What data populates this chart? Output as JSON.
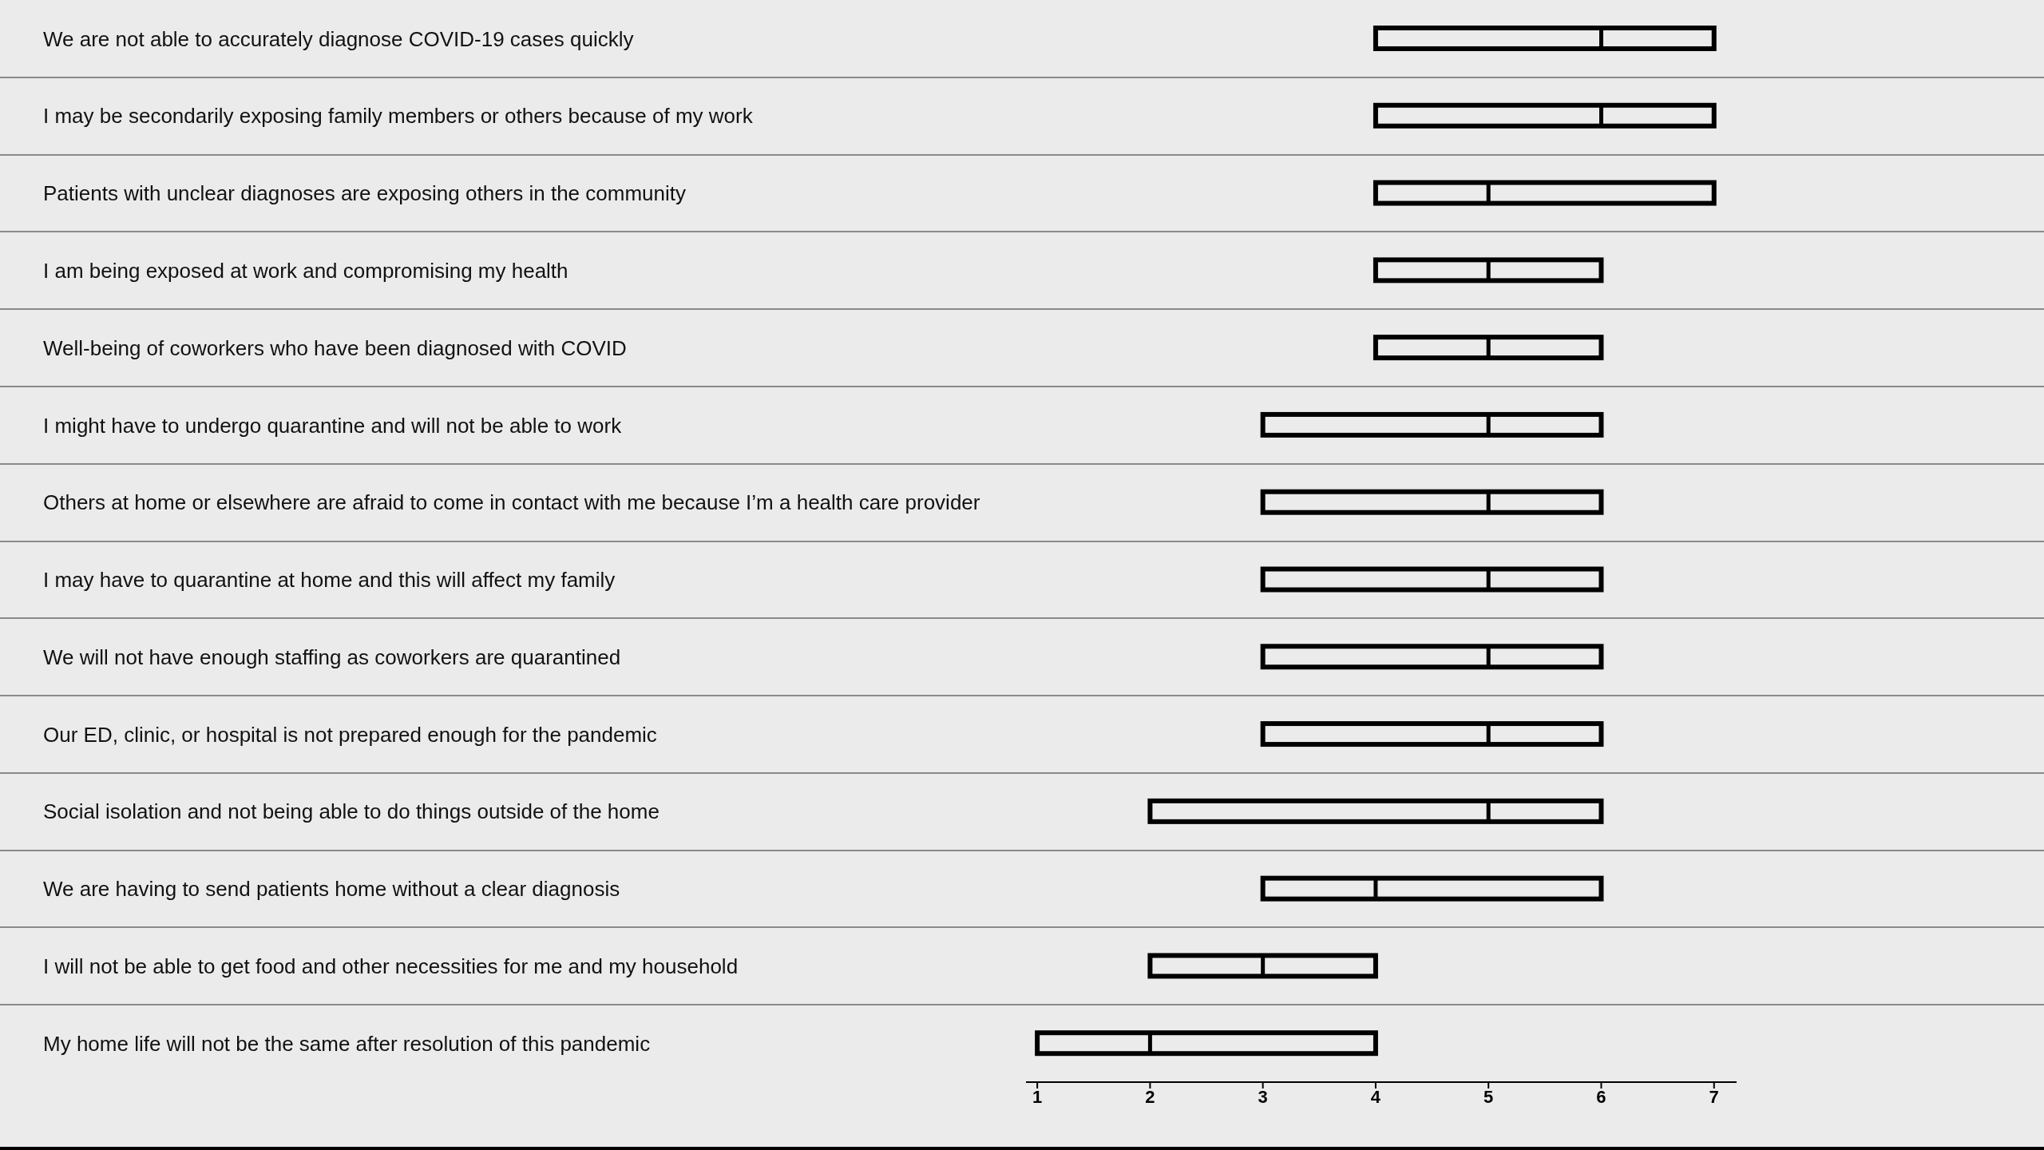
{
  "chart_data": {
    "type": "box",
    "orientation": "horizontal",
    "color": "#000000",
    "xlim": [
      0.9,
      7.2
    ],
    "xticks": [
      1,
      2,
      3,
      4,
      5,
      6,
      7
    ],
    "categories": [
      "We are not able to accurately diagnose COVID-19 cases quickly",
      "I may be secondarily exposing family members or others because of my work",
      "Patients with unclear diagnoses are exposing others in the community",
      "I am being exposed at work and compromising my health",
      "Well-being of coworkers who have been diagnosed with COVID",
      "I might have to undergo quarantine and will not be able to work",
      "Others at home or elsewhere are afraid to come in contact with me because I’m a health care provider",
      "I may have to quarantine at home and this will affect my family",
      "We will not have enough staffing as coworkers are quarantined",
      "Our ED, clinic, or hospital is not prepared enough for the pandemic",
      "Social isolation and not being able to do things outside of the home",
      "We are having to send patients home without a clear diagnosis",
      "I will not be able to get food and other necessities for me and my household",
      "My home life will not be the same after resolution of this pandemic"
    ],
    "boxes": [
      {
        "low": 4,
        "q1": 4,
        "median": 6,
        "q3": 7,
        "high": 7
      },
      {
        "low": 4,
        "q1": 4,
        "median": 6,
        "q3": 7,
        "high": 7
      },
      {
        "low": 4,
        "q1": 4,
        "median": 5,
        "q3": 7,
        "high": 7
      },
      {
        "low": 4,
        "q1": 4,
        "median": 5,
        "q3": 6,
        "high": 6
      },
      {
        "low": 4,
        "q1": 4,
        "median": 5,
        "q3": 6,
        "high": 6
      },
      {
        "low": 3,
        "q1": 3,
        "median": 5,
        "q3": 6,
        "high": 6
      },
      {
        "low": 3,
        "q1": 3,
        "median": 5,
        "q3": 6,
        "high": 6
      },
      {
        "low": 3,
        "q1": 3,
        "median": 5,
        "q3": 6,
        "high": 6
      },
      {
        "low": 3,
        "q1": 3,
        "median": 5,
        "q3": 6,
        "high": 6
      },
      {
        "low": 3,
        "q1": 3,
        "median": 5,
        "q3": 6,
        "high": 6
      },
      {
        "low": 2,
        "q1": 2,
        "median": 5,
        "q3": 6,
        "high": 6
      },
      {
        "low": 3,
        "q1": 3,
        "median": 4,
        "q3": 6,
        "high": 6
      },
      {
        "low": 2,
        "q1": 2,
        "median": 3,
        "q3": 4,
        "high": 4
      },
      {
        "low": 1,
        "q1": 1,
        "median": 2,
        "q3": 4,
        "high": 4
      }
    ]
  }
}
